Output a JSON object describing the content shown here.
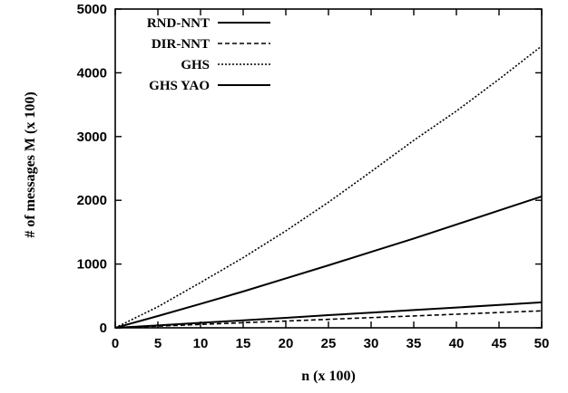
{
  "chart_data": {
    "type": "line",
    "title": "",
    "xlabel": "n (x 100)",
    "ylabel": "# of messages M (x 100)",
    "xlim": [
      0,
      50
    ],
    "ylim": [
      0,
      5000
    ],
    "xticks": [
      0,
      5,
      10,
      15,
      20,
      25,
      30,
      35,
      40,
      45,
      50
    ],
    "yticks": [
      0,
      1000,
      2000,
      3000,
      4000,
      5000
    ],
    "grid": false,
    "legend_position": "top-left",
    "series": [
      {
        "name": "RND-NNT",
        "style": "solid",
        "x": [
          0,
          5,
          10,
          15,
          20,
          25,
          30,
          35,
          40,
          45,
          50
        ],
        "y": [
          0,
          38,
          78,
          117,
          157,
          198,
          238,
          278,
          318,
          358,
          400
        ]
      },
      {
        "name": "DIR-NNT",
        "style": "dashed",
        "x": [
          0,
          5,
          10,
          15,
          20,
          25,
          30,
          35,
          40,
          45,
          50
        ],
        "y": [
          0,
          26,
          53,
          80,
          106,
          133,
          160,
          186,
          213,
          240,
          266
        ]
      },
      {
        "name": "GHS",
        "style": "dotted",
        "x": [
          0,
          5,
          10,
          15,
          20,
          25,
          30,
          35,
          40,
          45,
          50
        ],
        "y": [
          0,
          330,
          710,
          1100,
          1520,
          1970,
          2450,
          2940,
          3400,
          3900,
          4420
        ]
      },
      {
        "name": "GHS YAO",
        "style": "solid",
        "x": [
          0,
          5,
          10,
          15,
          20,
          25,
          30,
          35,
          40,
          45,
          50
        ],
        "y": [
          0,
          185,
          375,
          570,
          775,
          980,
          1190,
          1400,
          1620,
          1840,
          2060
        ]
      }
    ]
  }
}
